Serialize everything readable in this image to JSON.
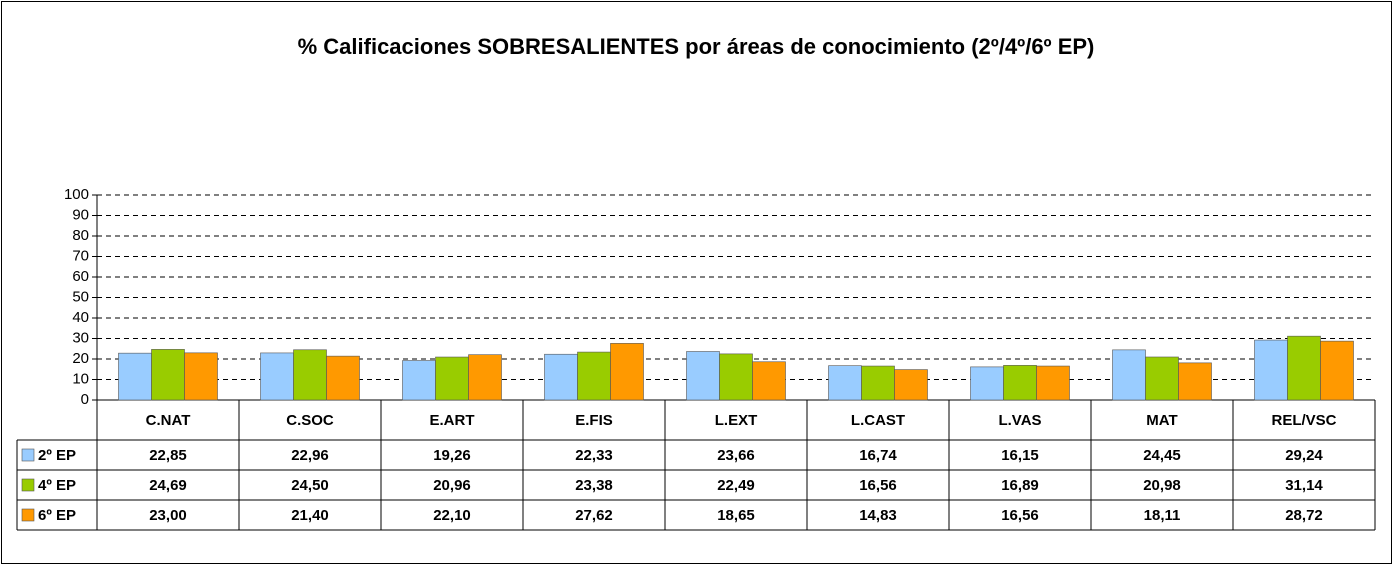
{
  "chart_data": {
    "type": "bar",
    "title": "% Calificaciones SOBRESALIENTES por áreas de conocimiento (2º/4º/6º EP)",
    "categories": [
      "C.NAT",
      "C.SOC",
      "E.ART",
      "E.FIS",
      "L.EXT",
      "L.CAST",
      "L.VAS",
      "MAT",
      "REL/VSC"
    ],
    "series": [
      {
        "name": "2º EP",
        "color": "#99ccff",
        "values": [
          22.85,
          22.96,
          19.26,
          22.33,
          23.66,
          16.74,
          16.15,
          24.45,
          29.24
        ],
        "value_labels": [
          "22,85",
          "22,96",
          "19,26",
          "22,33",
          "23,66",
          "16,74",
          "16,15",
          "24,45",
          "29,24"
        ]
      },
      {
        "name": "4º EP",
        "color": "#99cc00",
        "values": [
          24.69,
          24.5,
          20.96,
          23.38,
          22.49,
          16.56,
          16.89,
          20.98,
          31.14
        ],
        "value_labels": [
          "24,69",
          "24,50",
          "20,96",
          "23,38",
          "22,49",
          "16,56",
          "16,89",
          "20,98",
          "31,14"
        ]
      },
      {
        "name": "6º EP",
        "color": "#ff9900",
        "values": [
          23.0,
          21.4,
          22.1,
          27.62,
          18.65,
          14.83,
          16.56,
          18.11,
          28.72
        ],
        "value_labels": [
          "23,00",
          "21,40",
          "22,10",
          "27,62",
          "18,65",
          "14,83",
          "16,56",
          "18,11",
          "28,72"
        ]
      }
    ],
    "ylim": [
      0,
      100
    ],
    "yticks": [
      0,
      10,
      20,
      30,
      40,
      50,
      60,
      70,
      80,
      90,
      100
    ],
    "grid": true
  }
}
